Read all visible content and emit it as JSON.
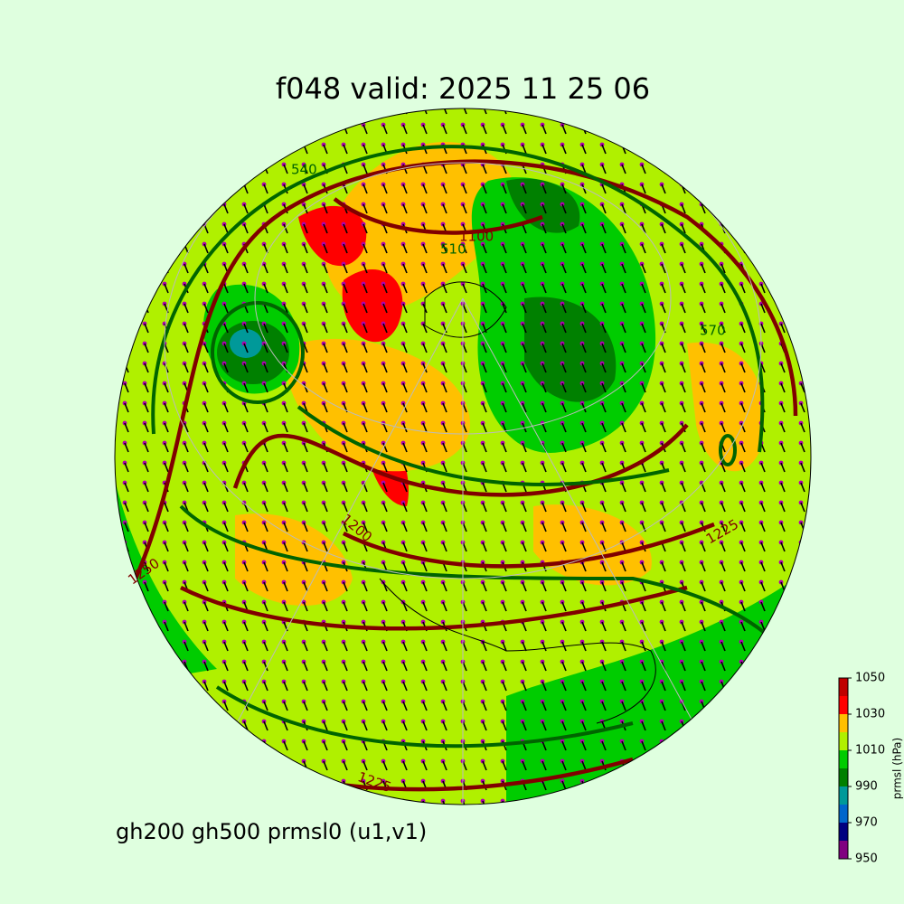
{
  "title": "f048 valid:   2025 11 25 06",
  "subtitle": "gh200 gh500 prmsl0 (u1,v1)",
  "colorbar": {
    "label": "prmsl (hPa)",
    "levels": [
      950,
      960,
      970,
      980,
      990,
      1000,
      1010,
      1020,
      1030,
      1040,
      1050
    ],
    "colors": [
      "#800080",
      "#000080",
      "#0066cc",
      "#009999",
      "#008000",
      "#00cc00",
      "#b0f000",
      "#ffc000",
      "#ff0000",
      "#c00000"
    ],
    "ticks": [
      950,
      970,
      990,
      1010,
      1030,
      1050
    ]
  },
  "contour_labels": [
    "540",
    "1100",
    "510",
    "570",
    "1225",
    "1200",
    "1250",
    "1225"
  ]
}
